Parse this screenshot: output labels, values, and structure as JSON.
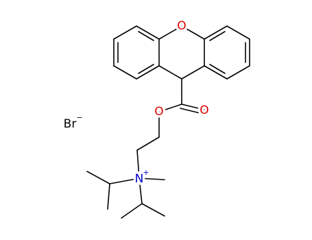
{
  "atoms": {
    "ring_oxygen": "O",
    "ester_oxygen": "O",
    "carbonyl_oxygen": "O",
    "nitrogen": "N",
    "nitrogen_charge": "+",
    "bromine": "Br",
    "bromine_charge": "−"
  }
}
